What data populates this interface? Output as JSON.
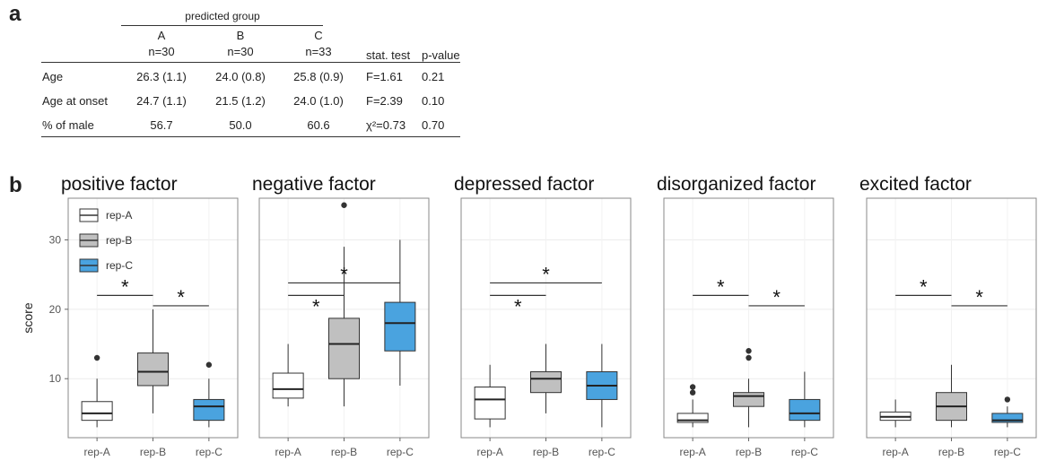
{
  "panel_a_label": "a",
  "panel_b_label": "b",
  "table": {
    "group_header": "predicted group",
    "groups": [
      {
        "name": "A",
        "n": "n=30"
      },
      {
        "name": "B",
        "n": "n=30"
      },
      {
        "name": "C",
        "n": "n=33"
      }
    ],
    "stat_header": "stat. test",
    "p_header": "p-value",
    "rows": [
      {
        "label": "Age",
        "A": "26.3 (1.1)",
        "B": "24.0 (0.8)",
        "C": "25.8 (0.9)",
        "stat": "F=1.61",
        "p": "0.21"
      },
      {
        "label": "Age at onset",
        "A": "24.7 (1.1)",
        "B": "21.5 (1.2)",
        "C": "24.0 (1.0)",
        "stat": "F=2.39",
        "p": "0.10"
      },
      {
        "label": "% of male",
        "A": "56.7",
        "B": "50.0",
        "C": "60.6",
        "stat": "χ²=0.73",
        "p": "0.70"
      }
    ]
  },
  "chart_data": {
    "type": "box",
    "ylabel": "score",
    "yticks": [
      10,
      20,
      30
    ],
    "ylim": [
      1.5,
      36
    ],
    "categories": [
      "rep-A",
      "rep-B",
      "rep-C"
    ],
    "legend": [
      {
        "name": "rep-A",
        "color": "#ffffff"
      },
      {
        "name": "rep-B",
        "color": "#c0c0c0"
      },
      {
        "name": "rep-C",
        "color": "#4aa3df"
      }
    ],
    "colors": {
      "rep-A": "#ffffff",
      "rep-B": "#c0c0c0",
      "rep-C": "#4aa3df"
    },
    "panels": [
      {
        "title": "positive factor",
        "boxes": [
          {
            "cat": "rep-A",
            "min": 3,
            "q1": 4,
            "median": 5,
            "q3": 6.7,
            "max": 10,
            "outliers": [
              13
            ]
          },
          {
            "cat": "rep-B",
            "min": 5,
            "q1": 9,
            "median": 11,
            "q3": 13.7,
            "max": 20,
            "outliers": []
          },
          {
            "cat": "rep-C",
            "min": 3,
            "q1": 4,
            "median": 6,
            "q3": 7,
            "max": 10,
            "outliers": [
              12
            ]
          }
        ],
        "sig": [
          {
            "from": 0,
            "to": 1,
            "y": 22,
            "label": "*"
          },
          {
            "from": 1,
            "to": 2,
            "y": 20.5,
            "label": "*"
          }
        ]
      },
      {
        "title": "negative factor",
        "boxes": [
          {
            "cat": "rep-A",
            "min": 6,
            "q1": 7.2,
            "median": 8.5,
            "q3": 10.8,
            "max": 15,
            "outliers": []
          },
          {
            "cat": "rep-B",
            "min": 6,
            "q1": 10,
            "median": 15,
            "q3": 18.7,
            "max": 29,
            "outliers": [
              35
            ]
          },
          {
            "cat": "rep-C",
            "min": 9,
            "q1": 14,
            "median": 18,
            "q3": 21,
            "max": 30,
            "outliers": []
          }
        ],
        "sig": [
          {
            "from": 0,
            "to": 2,
            "y": 23.8,
            "label": "*"
          },
          {
            "from": 0,
            "to": 1,
            "y": 22,
            "label": "*",
            "label_below": true
          }
        ]
      },
      {
        "title": "depressed factor",
        "boxes": [
          {
            "cat": "rep-A",
            "min": 3,
            "q1": 4.2,
            "median": 7,
            "q3": 8.8,
            "max": 12,
            "outliers": []
          },
          {
            "cat": "rep-B",
            "min": 5,
            "q1": 8,
            "median": 10,
            "q3": 11,
            "max": 15,
            "outliers": []
          },
          {
            "cat": "rep-C",
            "min": 3,
            "q1": 7,
            "median": 9,
            "q3": 11,
            "max": 15,
            "outliers": []
          }
        ],
        "sig": [
          {
            "from": 0,
            "to": 2,
            "y": 23.8,
            "label": "*"
          },
          {
            "from": 0,
            "to": 1,
            "y": 22,
            "label": "*",
            "label_below": true
          }
        ]
      },
      {
        "title": "disorganized factor",
        "boxes": [
          {
            "cat": "rep-A",
            "min": 3,
            "q1": 3.7,
            "median": 4,
            "q3": 5,
            "max": 7,
            "outliers": [
              8,
              8.8
            ]
          },
          {
            "cat": "rep-B",
            "min": 3,
            "q1": 6,
            "median": 7.5,
            "q3": 8,
            "max": 10,
            "outliers": [
              13,
              14
            ]
          },
          {
            "cat": "rep-C",
            "min": 3,
            "q1": 4,
            "median": 5,
            "q3": 7,
            "max": 11,
            "outliers": []
          }
        ],
        "sig": [
          {
            "from": 0,
            "to": 1,
            "y": 22,
            "label": "*"
          },
          {
            "from": 1,
            "to": 2,
            "y": 20.5,
            "label": "*"
          }
        ]
      },
      {
        "title": "excited factor",
        "boxes": [
          {
            "cat": "rep-A",
            "min": 3,
            "q1": 4,
            "median": 4.5,
            "q3": 5.2,
            "max": 7,
            "outliers": []
          },
          {
            "cat": "rep-B",
            "min": 3,
            "q1": 4,
            "median": 6,
            "q3": 8,
            "max": 12,
            "outliers": []
          },
          {
            "cat": "rep-C",
            "min": 3,
            "q1": 3.7,
            "median": 4,
            "q3": 5,
            "max": 6,
            "outliers": [
              7
            ]
          }
        ],
        "sig": [
          {
            "from": 0,
            "to": 1,
            "y": 22,
            "label": "*"
          },
          {
            "from": 1,
            "to": 2,
            "y": 20.5,
            "label": "*"
          }
        ]
      }
    ]
  }
}
